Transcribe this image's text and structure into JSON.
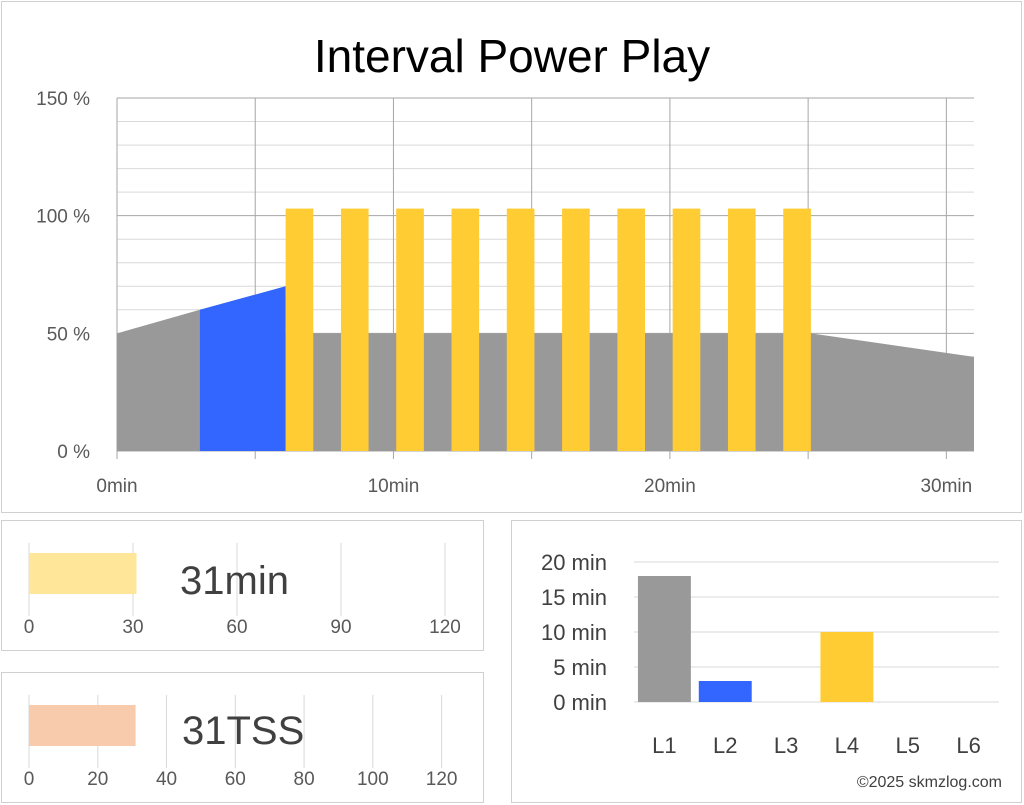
{
  "colors": {
    "warmup": "#999999",
    "ramp": "#3366ff",
    "interval": "#ffcc33",
    "grid": "#a6a6a6",
    "minor_grid": "#d9d9d9",
    "time_bar": "#ffe699",
    "tss_bar": "#f8cbad",
    "zone_L1": "#999999",
    "zone_L2": "#3366ff",
    "zone_L4": "#ffcc33"
  },
  "chart_data": [
    {
      "type": "area",
      "title": "Interval Power Play",
      "x_unit": "min",
      "xlim": [
        0,
        31
      ],
      "ylim": [
        0,
        150
      ],
      "x_ticks": [
        0,
        10,
        20,
        30
      ],
      "x_tick_labels": [
        "0min",
        "10min",
        "20min",
        "30min"
      ],
      "y_ticks": [
        0,
        50,
        100,
        150
      ],
      "y_tick_labels": [
        "0 %",
        "50 %",
        "100 %",
        "150 %"
      ],
      "grid": true,
      "background_profile": [
        {
          "x": 0,
          "y": 50
        },
        {
          "x": 3,
          "y": 60
        },
        {
          "x": 6.1,
          "y": 70
        },
        {
          "x": 6.1,
          "y": 50
        },
        {
          "x": 25.1,
          "y": 50
        },
        {
          "x": 31,
          "y": 40
        }
      ],
      "ramp_segment": {
        "x_start": 3,
        "x_end": 6.1,
        "y_start": 60,
        "y_end": 70
      },
      "intervals": {
        "starts": [
          6.1,
          8.1,
          10.1,
          12.1,
          14.1,
          16.1,
          18.1,
          20.1,
          22.1,
          24.1
        ],
        "duration": 1,
        "power": 103
      }
    },
    {
      "type": "bar",
      "orientation": "horizontal",
      "value": 31,
      "value_label": "31min",
      "xlim": [
        0,
        120
      ],
      "x_ticks": [
        0,
        30,
        60,
        90,
        120
      ],
      "x_tick_labels": [
        "0",
        "30",
        "60",
        "90",
        "120"
      ]
    },
    {
      "type": "bar",
      "orientation": "horizontal",
      "value": 31,
      "value_label": "31TSS",
      "xlim": [
        0,
        130
      ],
      "x_ticks": [
        0,
        20,
        40,
        60,
        80,
        100,
        120
      ],
      "x_tick_labels": [
        "0",
        "20",
        "40",
        "60",
        "80",
        "100",
        "120"
      ]
    },
    {
      "type": "bar",
      "categories": [
        "L1",
        "L2",
        "L3",
        "L4",
        "L5",
        "L6"
      ],
      "values": [
        18,
        3,
        0,
        10,
        0,
        0
      ],
      "ylim": [
        0,
        20
      ],
      "y_ticks": [
        0,
        5,
        10,
        15,
        20
      ],
      "y_tick_labels": [
        "0 min",
        "5 min",
        "10 min",
        "15 min",
        "20 min"
      ]
    }
  ],
  "footer": {
    "copyright": "©2025 skmzlog.com"
  }
}
